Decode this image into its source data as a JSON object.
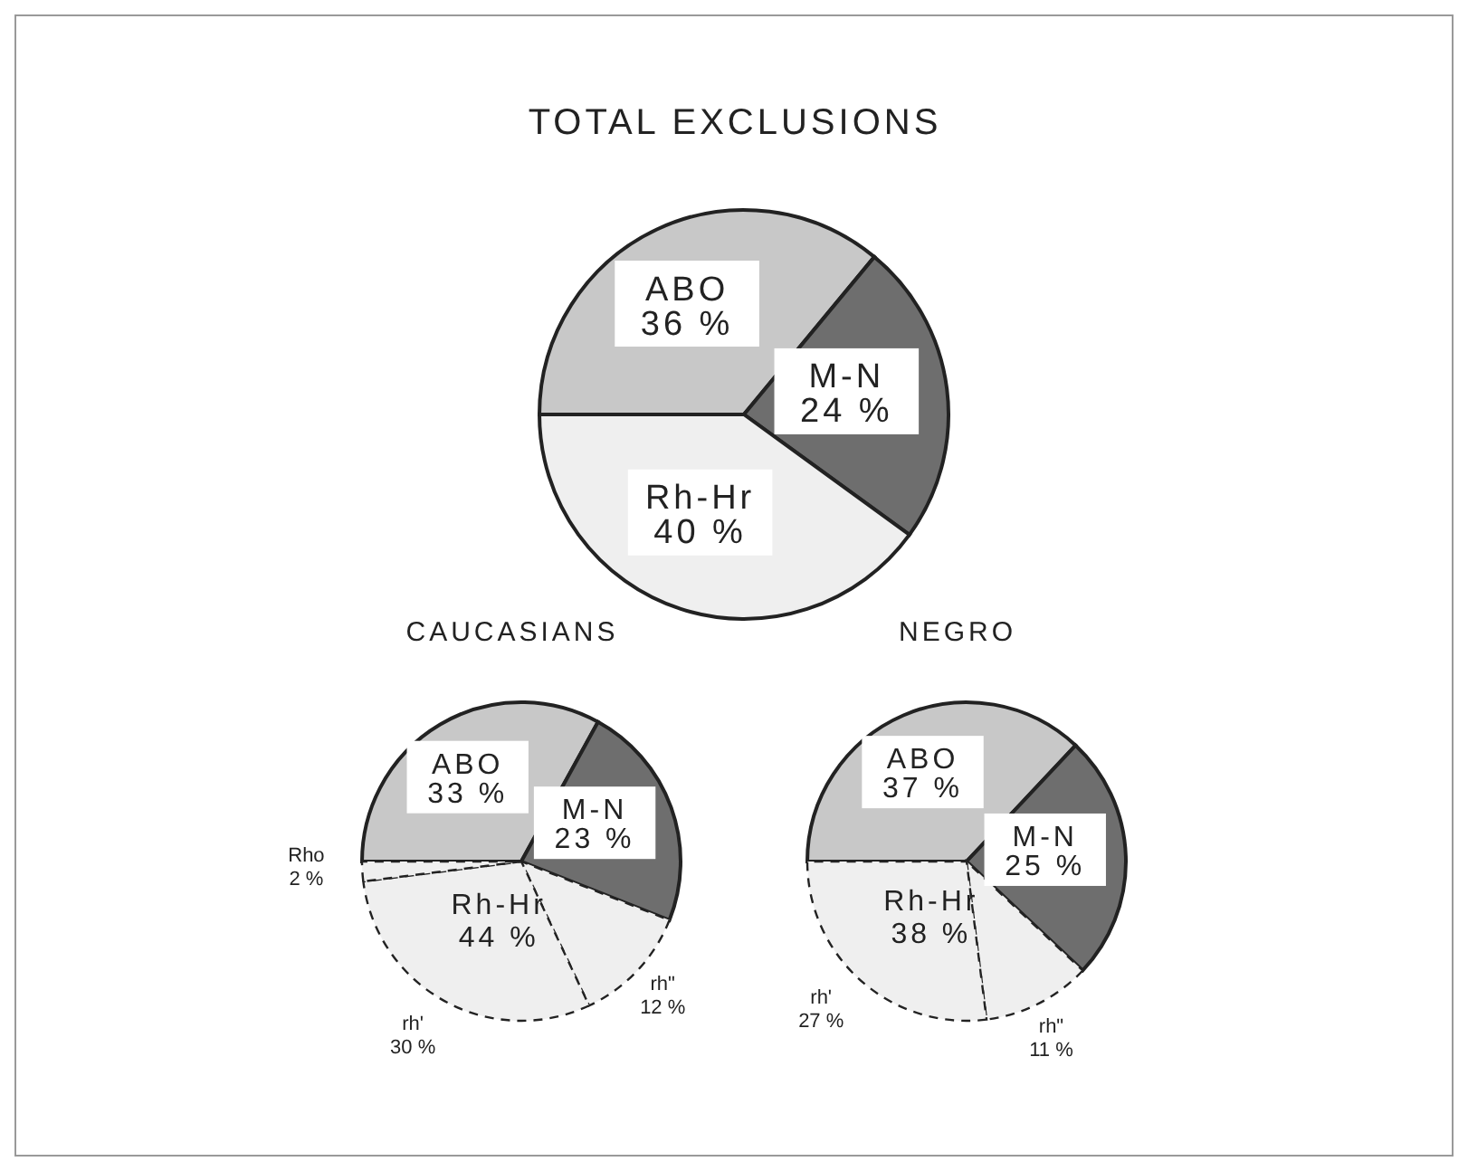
{
  "chart_data": [
    {
      "type": "pie",
      "title": "TOTAL EXCLUSIONS",
      "categories": [
        "ABO",
        "M-N",
        "Rh-Hr"
      ],
      "values": [
        36,
        24,
        40
      ],
      "value_labels": [
        "36 %",
        "24 %",
        "40 %"
      ],
      "colors": [
        "#c8c8c8",
        "#6e6e6e",
        "#efefef"
      ],
      "legend": false
    },
    {
      "type": "pie",
      "title": "CAUCASIANS",
      "categories": [
        "ABO",
        "M-N",
        "rh\"",
        "rh'",
        "Rho"
      ],
      "values": [
        33,
        23,
        12,
        30,
        2
      ],
      "value_labels": [
        "33 %",
        "23 %",
        "12 %",
        "30 %",
        "2 %"
      ],
      "colors": [
        "#c8c8c8",
        "#6e6e6e",
        "#efefef",
        "#efefef",
        "#efefef"
      ],
      "annotations": [
        "Rh-Hr 44 %"
      ],
      "legend": false
    },
    {
      "type": "pie",
      "title": "NEGRO",
      "categories": [
        "ABO",
        "M-N",
        "rh\"",
        "rh'"
      ],
      "values": [
        37,
        25,
        11,
        27
      ],
      "value_labels": [
        "37 %",
        "25 %",
        "11 %",
        "27 %"
      ],
      "colors": [
        "#c8c8c8",
        "#6e6e6e",
        "#efefef",
        "#efefef"
      ],
      "annotations": [
        "Rh-Hr 38 %"
      ],
      "legend": false
    }
  ]
}
